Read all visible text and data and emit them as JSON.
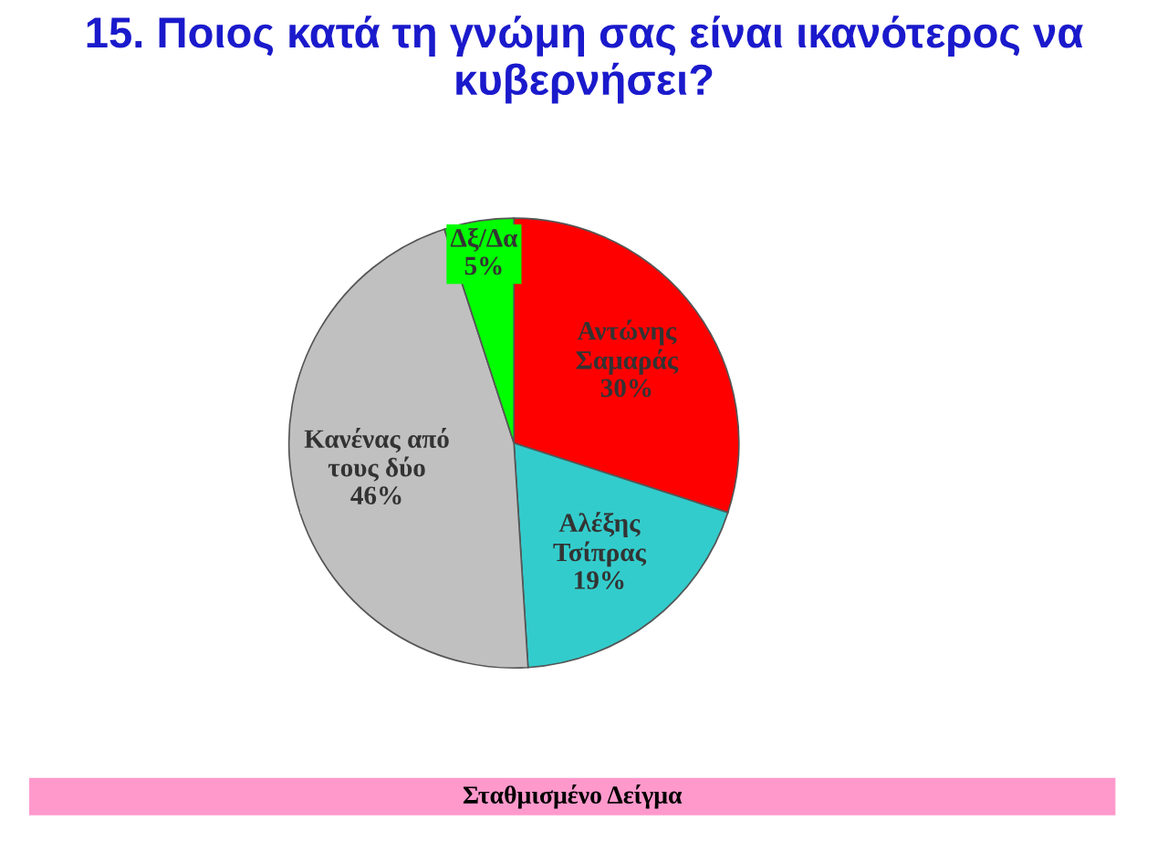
{
  "chart_data": {
    "type": "pie",
    "title": "15. Ποιος κατά τη γνώμη σας είναι ικανότερος να κυβερνήσει?",
    "categories": [
      "Αντώνης\nΣαμαράς",
      "Αλέξης\nΤσίπρας",
      "Κανένας από\nτους δύο",
      "Δξ/Δα"
    ],
    "values": [
      30,
      19,
      46,
      5
    ],
    "colors": [
      "#ff0000",
      "#33cccc",
      "#c0c0c0",
      "#00ff00"
    ],
    "value_labels": [
      "30%",
      "19%",
      "46%",
      "5%"
    ],
    "annotations": [
      "Σταθμισμένο Δείγμα"
    ]
  }
}
